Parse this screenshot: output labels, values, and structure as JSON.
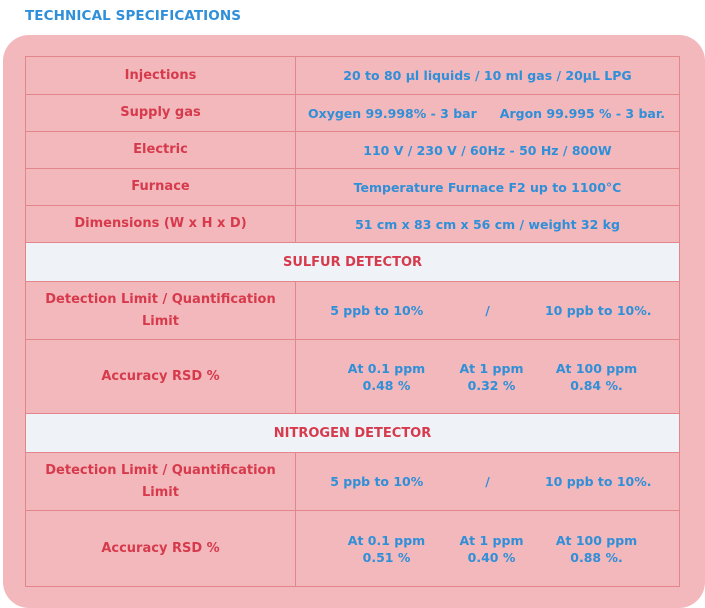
{
  "heading": "TECHNICAL SPECIFICATIONS",
  "general": [
    {
      "label": "Injections",
      "value": "20 to 80 µl liquids / 10 ml gas / 20µL LPG"
    },
    {
      "label": "Supply gas",
      "value_a": "Oxygen 99.998% - 3 bar",
      "value_b": "Argon 99.995 % - 3 bar."
    },
    {
      "label": "Electric",
      "value": "110 V / 230 V / 60Hz - 50 Hz / 800W"
    },
    {
      "label": "Furnace",
      "value": "Temperature Furnace F2 up to 1100°C"
    },
    {
      "label": "Dimensions (W x H x D)",
      "value": "51 cm x 83 cm x 56 cm / weight 32 kg"
    }
  ],
  "sulfur": {
    "title": "SULFUR DETECTOR",
    "detection_label": "Detection Limit / Quantification Limit",
    "detection_a": "5 ppb to 10%",
    "separator": "/",
    "detection_b": "10 ppb to 10%.",
    "accuracy_label": "Accuracy RSD %",
    "accuracy_headers": [
      "At 0.1 ppm",
      "At 1 ppm",
      "At 100 ppm"
    ],
    "accuracy_values": [
      "0.48 %",
      "0.32 %",
      "0.84 %."
    ]
  },
  "nitrogen": {
    "title": "NITROGEN DETECTOR",
    "detection_label": "Detection Limit / Quantification Limit",
    "detection_a": "5 ppb to 10%",
    "separator": "/",
    "detection_b": "10 ppb to 10%.",
    "accuracy_label": "Accuracy RSD %",
    "accuracy_headers": [
      "At 0.1 ppm",
      "At 1 ppm",
      "At 100 ppm"
    ],
    "accuracy_values": [
      "0.51 %",
      "0.40 %",
      "0.88 %."
    ]
  },
  "colors": {
    "label_red": "#d63a4c",
    "value_blue": "#2f8fd8",
    "panel_pink": "#f3b8bb",
    "section_band": "#eff2f7",
    "grid_line": "#e2868b"
  }
}
